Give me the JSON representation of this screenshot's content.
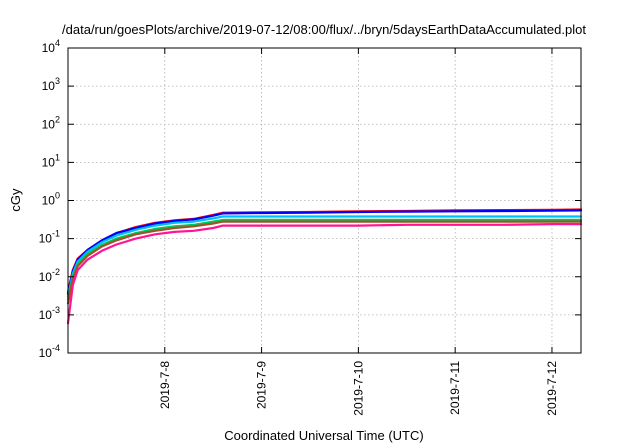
{
  "chart_data": {
    "type": "line",
    "title": "/data/run/goesPlots/archive/2019-07-12/08:00/flux/../bryn/5daysEarthDataAccumulated.plot",
    "xlabel": "Coordinated Universal Time (UTC)",
    "ylabel": "cGy",
    "yscale": "log",
    "ylim": [
      0.0001,
      10000
    ],
    "xlim": [
      0,
      5.3
    ],
    "grid": true,
    "x_ticks": [
      {
        "x": 1,
        "label": "2019-7-8"
      },
      {
        "x": 2,
        "label": "2019-7-9"
      },
      {
        "x": 3,
        "label": "2019-7-10"
      },
      {
        "x": 4,
        "label": "2019-7-11"
      },
      {
        "x": 5,
        "label": "2019-7-12"
      }
    ],
    "y_ticks": [
      {
        "y": 0.0001,
        "base": "10",
        "exp": "-4"
      },
      {
        "y": 0.001,
        "base": "10",
        "exp": "-3"
      },
      {
        "y": 0.01,
        "base": "10",
        "exp": "-2"
      },
      {
        "y": 0.1,
        "base": "10",
        "exp": "-1"
      },
      {
        "y": 1,
        "base": "10",
        "exp": "0"
      },
      {
        "y": 10,
        "base": "10",
        "exp": "1"
      },
      {
        "y": 100,
        "base": "10",
        "exp": "2"
      },
      {
        "y": 1000,
        "base": "10",
        "exp": "3"
      },
      {
        "y": 10000,
        "base": "10",
        "exp": "4"
      }
    ],
    "x": [
      0,
      0.05,
      0.1,
      0.2,
      0.35,
      0.5,
      0.7,
      0.9,
      1.1,
      1.3,
      1.5,
      1.6,
      2.0,
      2.5,
      3.0,
      3.5,
      4.0,
      4.5,
      5.0,
      5.3
    ],
    "series": [
      {
        "color": "#ff0000",
        "values": [
          0.004,
          0.015,
          0.03,
          0.05,
          0.09,
          0.14,
          0.2,
          0.26,
          0.3,
          0.33,
          0.42,
          0.48,
          0.49,
          0.5,
          0.52,
          0.53,
          0.55,
          0.56,
          0.57,
          0.58
        ]
      },
      {
        "color": "#0000ff",
        "values": [
          0.0035,
          0.014,
          0.028,
          0.05,
          0.09,
          0.14,
          0.19,
          0.25,
          0.29,
          0.32,
          0.4,
          0.46,
          0.47,
          0.48,
          0.5,
          0.51,
          0.52,
          0.53,
          0.54,
          0.55
        ]
      },
      {
        "color": "#00bfff",
        "values": [
          0.003,
          0.012,
          0.025,
          0.045,
          0.08,
          0.12,
          0.17,
          0.22,
          0.26,
          0.28,
          0.34,
          0.38,
          0.38,
          0.38,
          0.38,
          0.38,
          0.38,
          0.38,
          0.38,
          0.38
        ]
      },
      {
        "color": "#00c853",
        "values": [
          0.0025,
          0.01,
          0.021,
          0.039,
          0.068,
          0.1,
          0.14,
          0.18,
          0.21,
          0.23,
          0.28,
          0.31,
          0.31,
          0.31,
          0.31,
          0.31,
          0.31,
          0.31,
          0.31,
          0.31
        ]
      },
      {
        "color": "#a0522d",
        "values": [
          0.002,
          0.009,
          0.019,
          0.035,
          0.062,
          0.09,
          0.13,
          0.16,
          0.19,
          0.21,
          0.25,
          0.28,
          0.28,
          0.28,
          0.28,
          0.28,
          0.28,
          0.28,
          0.28,
          0.28
        ]
      },
      {
        "color": "#ff1493",
        "values": [
          0.0006,
          0.006,
          0.015,
          0.028,
          0.048,
          0.07,
          0.1,
          0.13,
          0.15,
          0.16,
          0.19,
          0.22,
          0.22,
          0.22,
          0.22,
          0.23,
          0.23,
          0.23,
          0.24,
          0.24
        ]
      }
    ]
  }
}
